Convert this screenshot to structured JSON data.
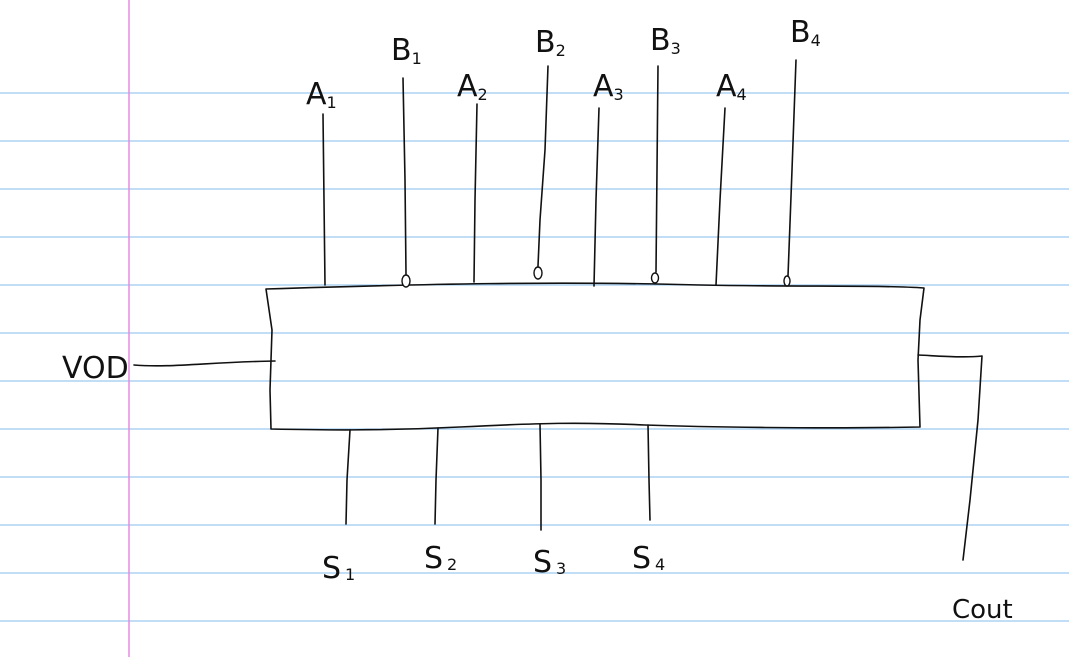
{
  "paper": {
    "rule_color": "#9ec9f0",
    "margin_color": "#e58ce0",
    "ink_color": "#111111"
  },
  "diagram": {
    "inputs_top": [
      {
        "base": "A",
        "sub": "1",
        "inverted": false
      },
      {
        "base": "B",
        "sub": "1",
        "inverted": true
      },
      {
        "base": "A",
        "sub": "2",
        "inverted": false
      },
      {
        "base": "B",
        "sub": "2",
        "inverted": true
      },
      {
        "base": "A",
        "sub": "3",
        "inverted": false
      },
      {
        "base": "B",
        "sub": "3",
        "inverted": true
      },
      {
        "base": "A",
        "sub": "4",
        "inverted": false
      },
      {
        "base": "B",
        "sub": "4",
        "inverted": true
      }
    ],
    "left_input": {
      "label": "VOD"
    },
    "outputs_bottom": [
      {
        "base": "S",
        "sub": "1"
      },
      {
        "base": "S",
        "sub": "2"
      },
      {
        "base": "S",
        "sub": "3"
      },
      {
        "base": "S",
        "sub": "4"
      }
    ],
    "carry_out": {
      "label": "Cout"
    }
  }
}
